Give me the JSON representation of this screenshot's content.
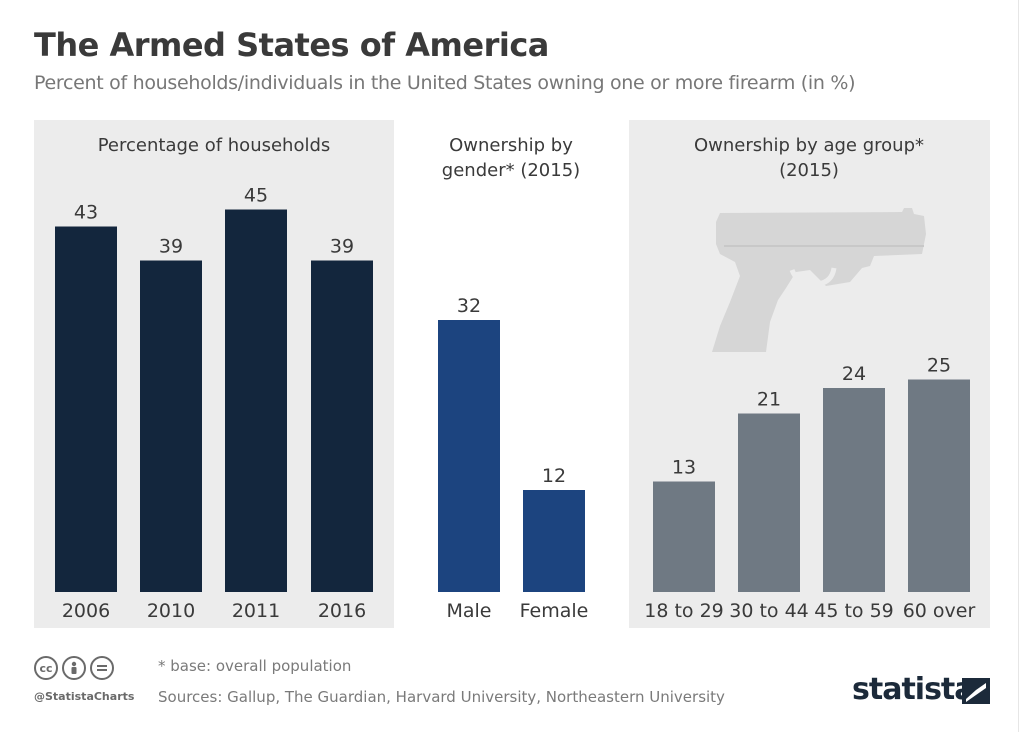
{
  "header": {
    "title": "The Armed States of America",
    "subtitle": "Percent of households/individuals in the United States owning one or more firearm (in %)"
  },
  "chart_data": [
    {
      "type": "bar",
      "title": "Percentage of households",
      "categories": [
        "2006",
        "2010",
        "2011",
        "2016"
      ],
      "values": [
        43,
        39,
        45,
        39
      ],
      "ylim": [
        0,
        45
      ],
      "color": "#13263d"
    },
    {
      "type": "bar",
      "title": "Ownership by gender* (2015)",
      "categories": [
        "Male",
        "Female"
      ],
      "values": [
        32,
        12
      ],
      "ylim": [
        0,
        45
      ],
      "color": "#1c447f"
    },
    {
      "type": "bar",
      "title": "Ownership by age group* (2015)",
      "categories": [
        "18 to 29",
        "30 to 44",
        "45 to 59",
        "60 over"
      ],
      "values": [
        13,
        21,
        24,
        25
      ],
      "ylim": [
        0,
        45
      ],
      "color": "#6f7983"
    }
  ],
  "panel_titles": {
    "households": [
      "Percentage of households"
    ],
    "gender": [
      "Ownership by",
      "gender* (2015)"
    ],
    "age": [
      "Ownership by age group*",
      "(2015)"
    ]
  },
  "footer": {
    "note": "* base: overall population",
    "sources": "Sources: Gallup, The Guardian, Harvard University, Northeastern University",
    "handle": "@StatistaCharts",
    "brand": "statista"
  },
  "icons": {
    "license": [
      "cc-icon",
      "attribution-icon",
      "no-derivatives-icon"
    ],
    "illustration": "handgun-icon"
  },
  "colors": {
    "panel_bg": "#ececec",
    "households_bar": "#13263d",
    "gender_bar": "#1c447f",
    "age_bar": "#6f7983",
    "gun": "#d6d6d6"
  }
}
